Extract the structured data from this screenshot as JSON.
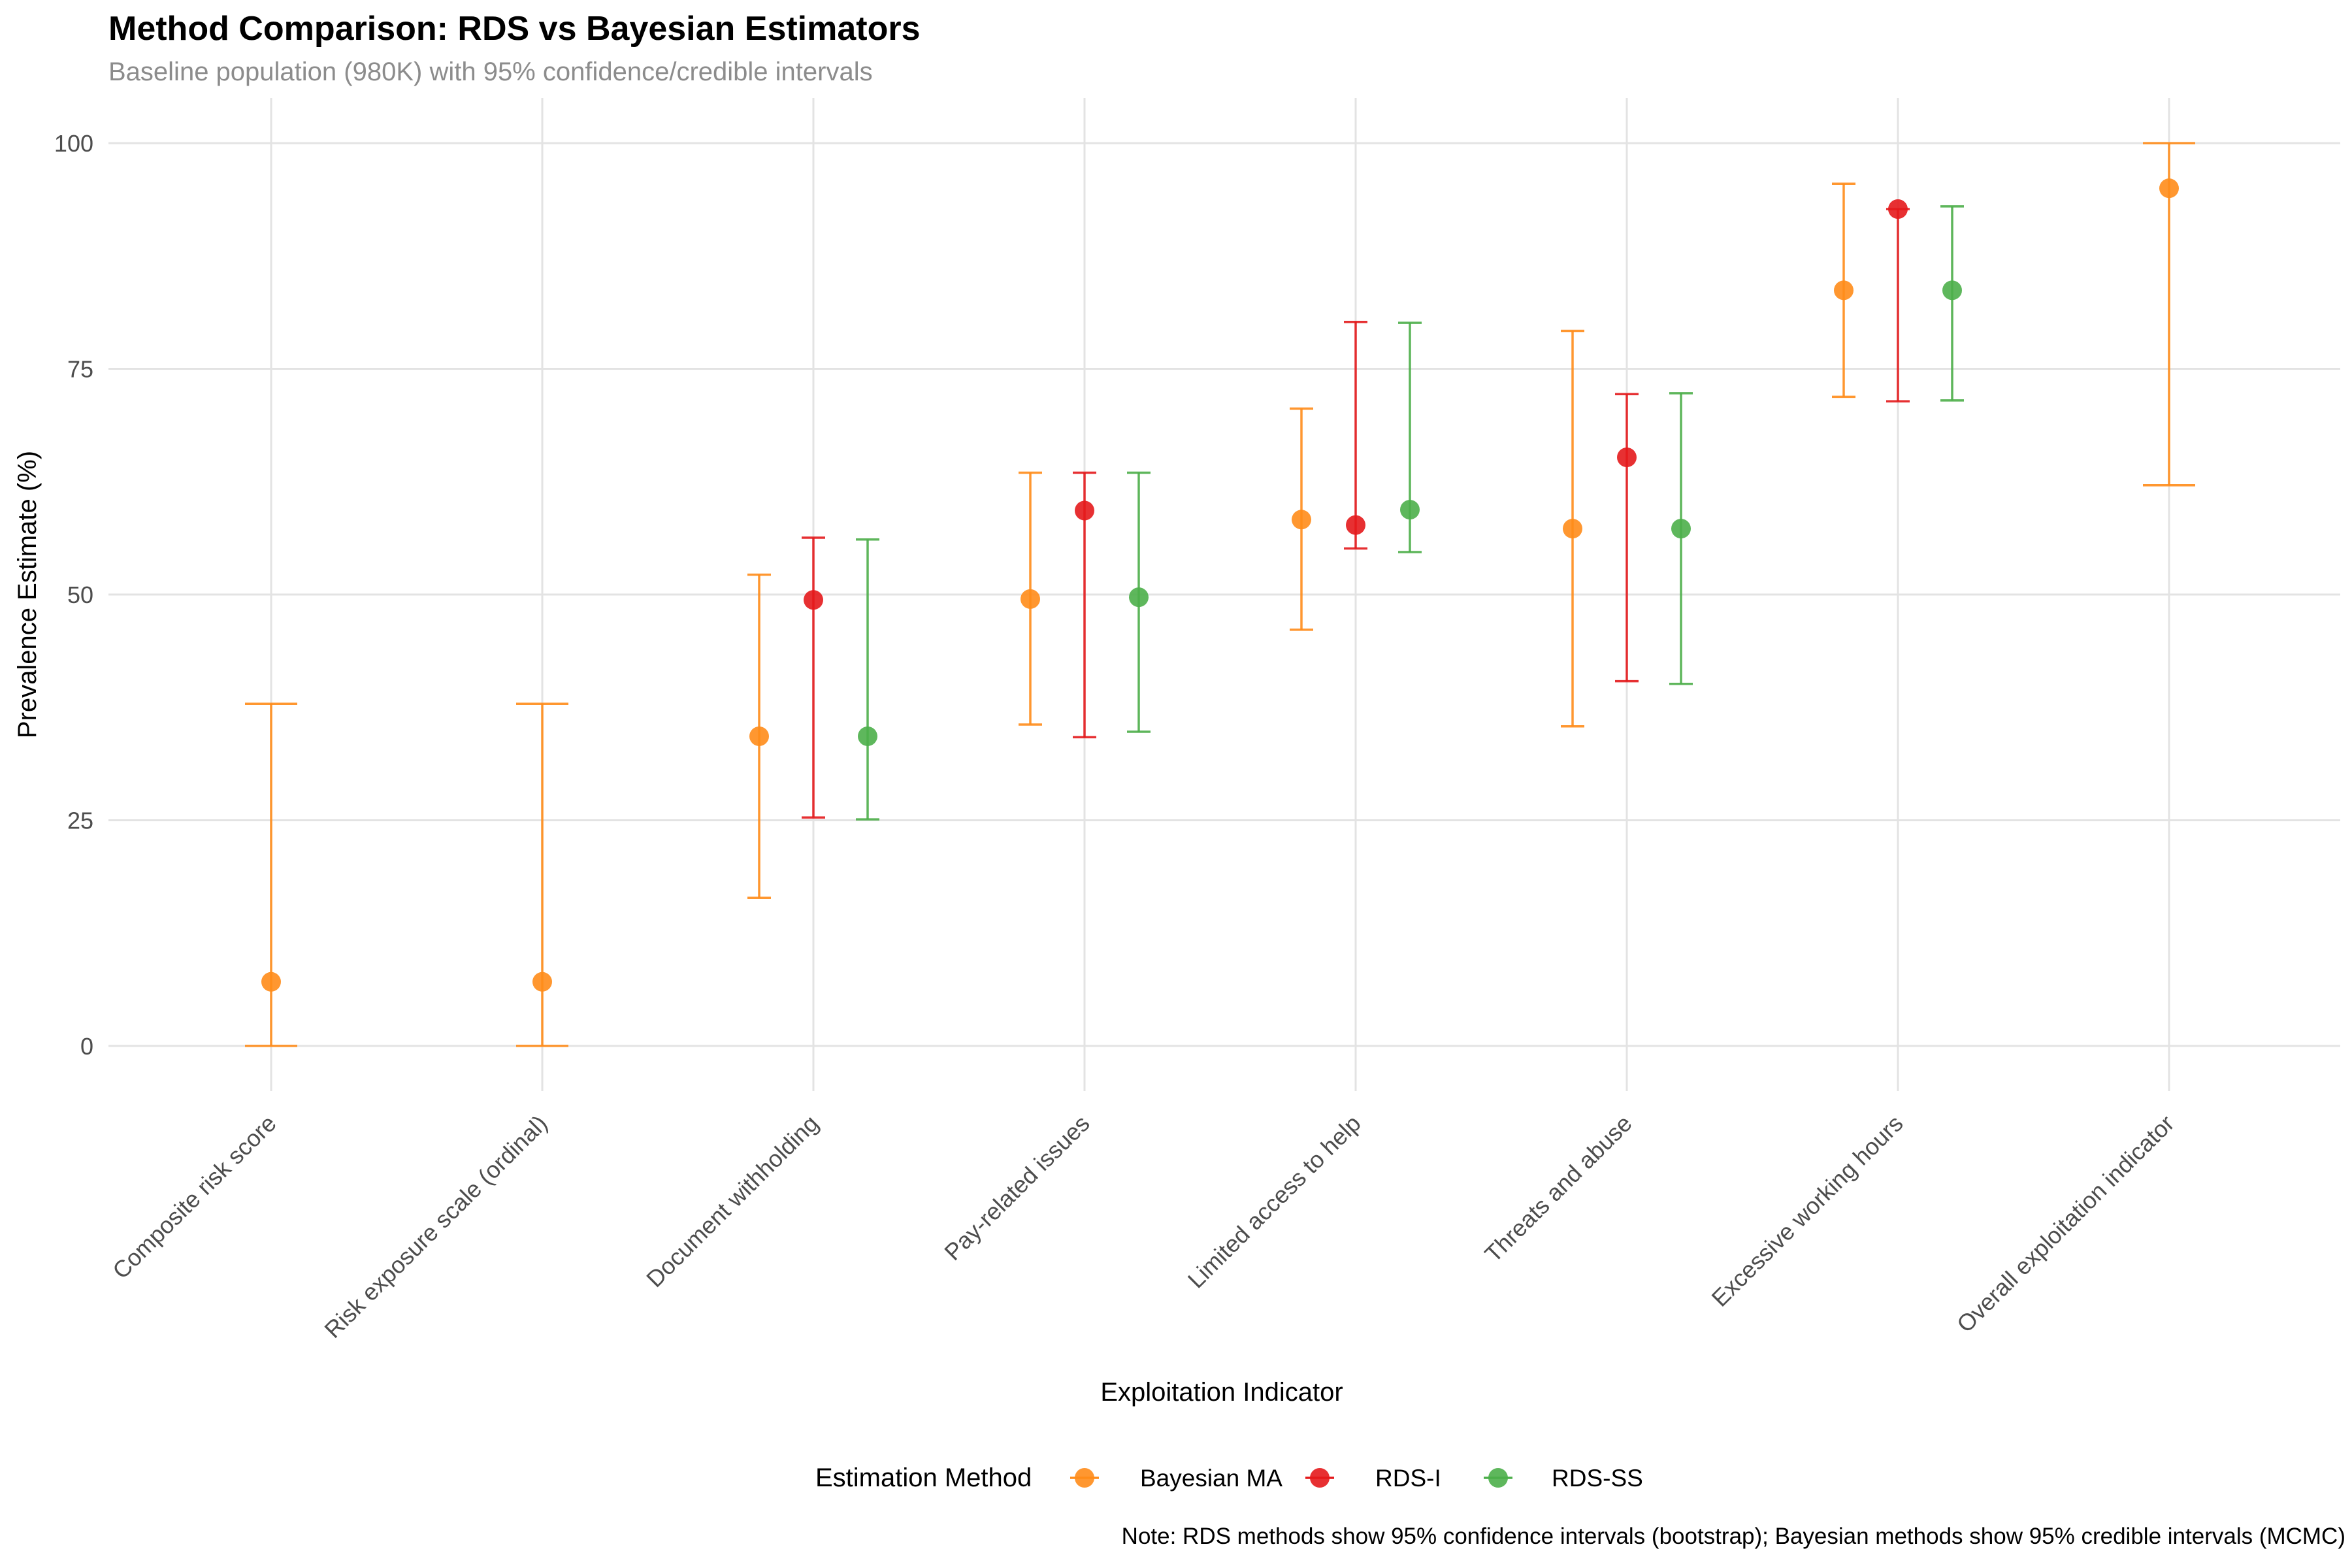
{
  "chart_data": {
    "type": "errorbar",
    "title": "Method Comparison: RDS vs Bayesian Estimators",
    "subtitle": "Baseline population (980K) with 95% confidence/credible intervals",
    "xlabel": "Exploitation Indicator",
    "ylabel": "Prevalence Estimate (%)",
    "ylim": [
      -5,
      105
    ],
    "yticks": [
      0,
      25,
      50,
      75,
      100
    ],
    "grid": true,
    "legend_position": "bottom",
    "legend_title": "Estimation Method",
    "categories": [
      "Composite risk score",
      "Risk exposure scale (ordinal)",
      "Document withholding",
      "Pay-related issues",
      "Limited access to help",
      "Threats and abuse",
      "Excessive working hours",
      "Overall exploitation indicator"
    ],
    "series": [
      {
        "name": "Bayesian MA",
        "color": "#ff8c1a",
        "points": [
          {
            "category": "Composite risk score",
            "estimate": 7.1,
            "lower": 0.0,
            "upper": 37.9
          },
          {
            "category": "Risk exposure scale (ordinal)",
            "estimate": 7.1,
            "lower": 0.0,
            "upper": 37.9
          },
          {
            "category": "Document withholding",
            "estimate": 34.3,
            "lower": 16.4,
            "upper": 52.2
          },
          {
            "category": "Pay-related issues",
            "estimate": 49.5,
            "lower": 35.6,
            "upper": 63.5
          },
          {
            "category": "Limited access to help",
            "estimate": 58.3,
            "lower": 46.1,
            "upper": 70.6
          },
          {
            "category": "Threats and abuse",
            "estimate": 57.3,
            "lower": 35.4,
            "upper": 79.2
          },
          {
            "category": "Excessive working hours",
            "estimate": 83.7,
            "lower": 71.9,
            "upper": 95.5
          },
          {
            "category": "Overall exploitation indicator",
            "estimate": 95.0,
            "lower": 62.1,
            "upper": 100.0
          }
        ]
      },
      {
        "name": "RDS-I",
        "color": "#e41a1c",
        "points": [
          {
            "category": "Document withholding",
            "estimate": 49.4,
            "lower": 25.3,
            "upper": 56.3
          },
          {
            "category": "Pay-related issues",
            "estimate": 59.3,
            "lower": 34.2,
            "upper": 63.5
          },
          {
            "category": "Limited access to help",
            "estimate": 57.7,
            "lower": 55.1,
            "upper": 80.2
          },
          {
            "category": "Threats and abuse",
            "estimate": 65.2,
            "lower": 40.4,
            "upper": 72.2
          },
          {
            "category": "Excessive working hours",
            "estimate": 92.7,
            "lower": 71.4,
            "upper": 92.7
          }
        ]
      },
      {
        "name": "RDS-SS",
        "color": "#4daf4a",
        "points": [
          {
            "category": "Document withholding",
            "estimate": 34.3,
            "lower": 25.1,
            "upper": 56.1
          },
          {
            "category": "Pay-related issues",
            "estimate": 49.7,
            "lower": 34.8,
            "upper": 63.5
          },
          {
            "category": "Limited access to help",
            "estimate": 59.4,
            "lower": 54.7,
            "upper": 80.1
          },
          {
            "category": "Threats and abuse",
            "estimate": 57.3,
            "lower": 40.1,
            "upper": 72.3
          },
          {
            "category": "Excessive working hours",
            "estimate": 83.7,
            "lower": 71.5,
            "upper": 93.0
          }
        ]
      }
    ],
    "footnote": "Note: RDS methods show 95% confidence intervals (bootstrap); Bayesian methods show 95% credible intervals (MCMC)"
  }
}
